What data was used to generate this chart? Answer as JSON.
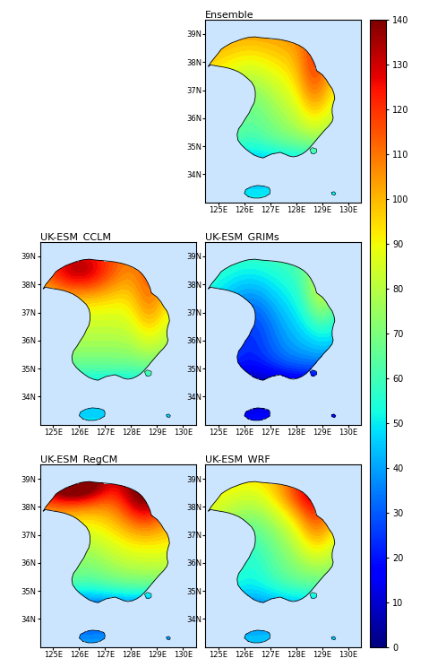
{
  "panels": [
    {
      "title": "Ensemble",
      "gs_row": 0,
      "gs_col": 1,
      "pattern": "ensemble"
    },
    {
      "title": "UK-ESM_CCLM",
      "gs_row": 1,
      "gs_col": 0,
      "pattern": "cclm"
    },
    {
      "title": "UK-ESM_GRIMs",
      "gs_row": 1,
      "gs_col": 1,
      "pattern": "grims"
    },
    {
      "title": "UK-ESM_RegCM",
      "gs_row": 2,
      "gs_col": 0,
      "pattern": "regcm"
    },
    {
      "title": "UK-ESM_WRF",
      "gs_row": 2,
      "gs_col": 1,
      "pattern": "wrf"
    }
  ],
  "lon_min": 124.5,
  "lon_max": 130.5,
  "lat_min": 33.0,
  "lat_max": 39.5,
  "lon_ticks": [
    125,
    126,
    127,
    128,
    129,
    130
  ],
  "lat_ticks": [
    34,
    35,
    36,
    37,
    38,
    39
  ],
  "cmap": "jet",
  "vmin": 0,
  "vmax": 140,
  "colorbar_ticks": [
    0,
    10,
    20,
    30,
    40,
    50,
    60,
    70,
    80,
    90,
    100,
    110,
    120,
    130,
    140
  ],
  "title_fontsize": 8,
  "tick_fontsize": 6,
  "colorbar_fontsize": 7,
  "figsize": [
    4.98,
    7.44
  ],
  "dpi": 100,
  "ocean_color": "#cce5ff"
}
